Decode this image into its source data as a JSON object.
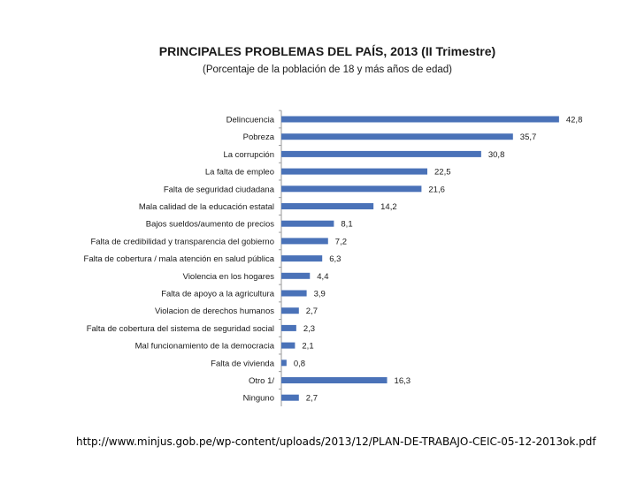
{
  "chart_data": {
    "type": "bar",
    "orientation": "horizontal",
    "title": "PRINCIPALES PROBLEMAS DEL PAÍS, 2013 (II Trimestre)",
    "subtitle": "(Porcentaje de la población de 18 y más años de edad)",
    "categories": [
      "Delincuencia",
      "Pobreza",
      "La corrupción",
      "La falta de empleo",
      "Falta de seguridad ciudadana",
      "Mala calidad de la educación estatal",
      "Bajos sueldos/aumento de precios",
      "Falta de credibilidad y transparencia del gobierno",
      "Falta de cobertura / mala atención en salud pública",
      "Violencia en los hogares",
      "Falta de apoyo a la agricultura",
      "Violacion de derechos humanos",
      "Falta de cobertura del sistema de seguridad social",
      "Mal funcionamiento de la democracia",
      "Falta de vivienda",
      "Otro 1/",
      "Ninguno"
    ],
    "values": [
      42.8,
      35.7,
      30.8,
      22.5,
      21.6,
      14.2,
      8.1,
      7.2,
      6.3,
      4.4,
      3.9,
      2.7,
      2.3,
      2.1,
      0.8,
      16.3,
      2.7
    ],
    "value_labels": [
      "42,8",
      "35,7",
      "30,8",
      "22,5",
      "21,6",
      "14,2",
      "8,1",
      "7,2",
      "6,3",
      "4,4",
      "3,9",
      "2,7",
      "2,3",
      "2,1",
      "0,8",
      "16,3",
      "2,7"
    ],
    "xlim": [
      0,
      45
    ],
    "xlabel": "",
    "ylabel": "",
    "bar_color": "#4a72b8",
    "grid": false
  },
  "source_url": "http://www.minjus.gob.pe/wp-content/uploads/2013/12/PLAN-DE-TRABAJO-CEIC-05-12-2013ok.pdf"
}
